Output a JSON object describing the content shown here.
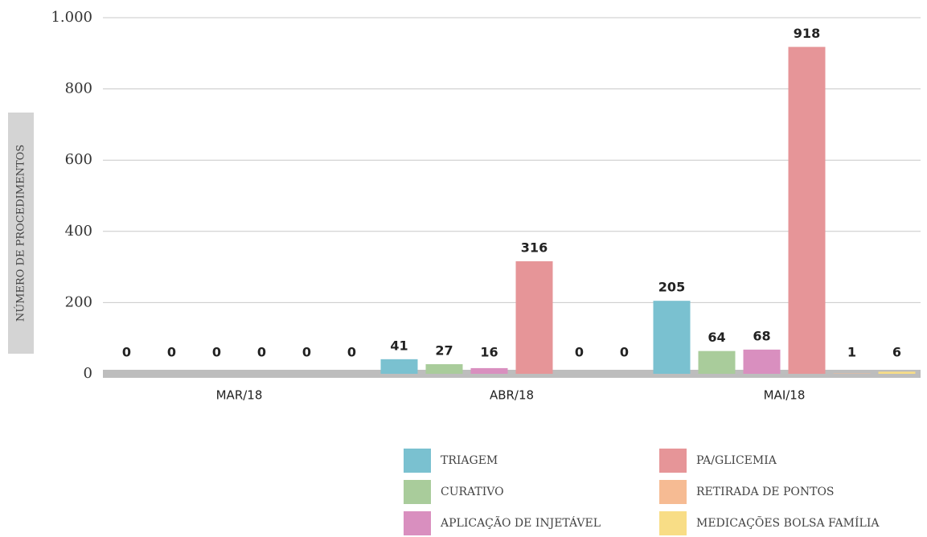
{
  "chart_data": {
    "type": "bar",
    "y_label": "NÚMERO DE PROCEDIMENTOS",
    "categories": [
      "MAR/18",
      "ABR/18",
      "MAI/18"
    ],
    "series": [
      {
        "name": "TRIAGEM",
        "color": "#7ac1d0",
        "values": [
          0,
          41,
          205
        ]
      },
      {
        "name": "CURATIVO",
        "color": "#a9cc9b",
        "values": [
          0,
          27,
          64
        ]
      },
      {
        "name": "APLICAÇÃO DE INJETÁVEL",
        "color": "#d98fbf",
        "values": [
          0,
          16,
          68
        ]
      },
      {
        "name": "PA/GLICEMIA",
        "color": "#e69598",
        "values": [
          0,
          316,
          918
        ]
      },
      {
        "name": "RETIRADA DE PONTOS",
        "color": "#f6bb93",
        "values": [
          0,
          0,
          1
        ]
      },
      {
        "name": "MEDICAÇÕES BOLSA FAMÍLIA",
        "color": "#f8dd86",
        "values": [
          0,
          0,
          6
        ]
      }
    ],
    "ylim": [
      0,
      1000
    ],
    "yticks": [
      0,
      200,
      400,
      600,
      800,
      {
        "value": 1000,
        "label": "1.000"
      }
    ],
    "grid": true
  }
}
